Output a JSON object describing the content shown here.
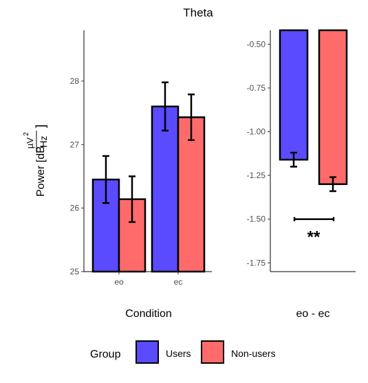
{
  "title": "Theta",
  "colors": {
    "users": "#5A4BFF",
    "non_users": "#FF6B6B",
    "outline": "#000000"
  },
  "chart_data": [
    {
      "type": "bar",
      "xlabel": "Condition",
      "ylabel": "Power [dB µV²/Hz]",
      "ylabel_main": "Power [dB ",
      "ylabel_frac_num": "µV",
      "ylabel_frac_sup": "2",
      "ylabel_frac_den": "Hz",
      "ylabel_close": "]",
      "categories": [
        "eo",
        "ec"
      ],
      "ylim": [
        25,
        28.8
      ],
      "yticks": [
        25,
        26,
        27,
        28
      ],
      "series": [
        {
          "name": "Users",
          "values": [
            26.45,
            27.6
          ],
          "err_low": [
            26.08,
            27.22
          ],
          "err_high": [
            26.82,
            27.98
          ]
        },
        {
          "name": "Non-users",
          "values": [
            26.14,
            27.43
          ],
          "err_low": [
            25.78,
            27.07
          ],
          "err_high": [
            26.5,
            27.79
          ]
        }
      ]
    },
    {
      "type": "bar",
      "xlabel": "eo - ec",
      "ylim": [
        -1.8,
        -0.42
      ],
      "yticks": [
        -0.5,
        -0.75,
        -1.0,
        -1.25,
        -1.5,
        -1.75
      ],
      "ytick_labels": [
        "-0.50",
        "-0.75",
        "-1.00",
        "-1.25",
        "-1.50",
        "-1.75"
      ],
      "series": [
        {
          "name": "Users",
          "values": [
            -1.16
          ],
          "err_low": [
            -1.2
          ],
          "err_high": [
            -1.12
          ]
        },
        {
          "name": "Non-users",
          "values": [
            -1.3
          ],
          "err_low": [
            -1.34
          ],
          "err_high": [
            -1.26
          ]
        }
      ],
      "annotations": [
        {
          "text": "**",
          "y": -1.5
        }
      ]
    }
  ],
  "legend": {
    "title": "Group",
    "items": [
      {
        "label": "Users",
        "color_key": "users"
      },
      {
        "label": "Non-users",
        "color_key": "non_users"
      }
    ]
  }
}
